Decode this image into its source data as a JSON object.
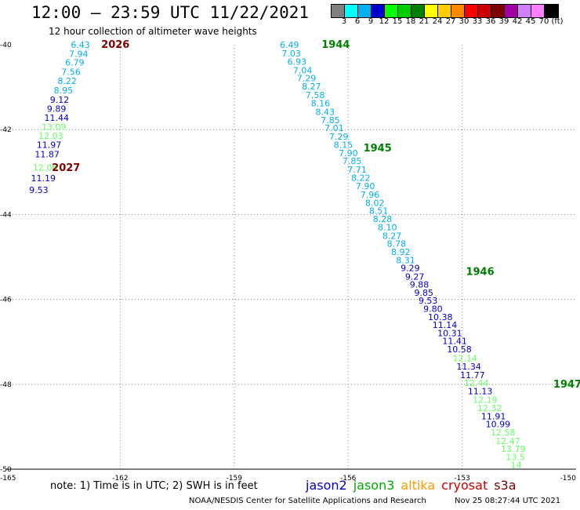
{
  "header": {
    "title": "12:00 – 23:59 UTC 11/22/2021",
    "subtitle": "12 hour collection of altimeter wave heights"
  },
  "color_legend": {
    "colors": [
      "#808080",
      "#00ffff",
      "#00b0f0",
      "#0000cc",
      "#00ff00",
      "#00cc00",
      "#008000",
      "#ffff00",
      "#ffcc00",
      "#ff8800",
      "#ff0000",
      "#cc0000",
      "#800000",
      "#a000a0",
      "#d080ff",
      "#ff80ff",
      "#000000"
    ],
    "labels": [
      "3",
      "6",
      "9",
      "12",
      "15",
      "18",
      "21",
      "24",
      "27",
      "30",
      "33",
      "36",
      "39",
      "42",
      "45",
      "70",
      "(ft)"
    ]
  },
  "chart_data": {
    "type": "scatter",
    "xlim": [
      -165,
      -150
    ],
    "ylim": [
      -50,
      -40
    ],
    "x_ticks": [
      "-165",
      "-162",
      "-159",
      "-156",
      "-153",
      "-150"
    ],
    "y_ticks": [
      "-40",
      "-42",
      "-44",
      "-46",
      "-48",
      "-50"
    ],
    "grid": true,
    "track_a": {
      "time_labels": [
        {
          "text": "2026",
          "x": -162.5,
          "y": -40.0,
          "color": "#800000"
        },
        {
          "text": "2027",
          "x": -163.8,
          "y": -42.9,
          "color": "#800000"
        }
      ],
      "points": [
        {
          "x": -163.3,
          "y": -40.0,
          "v": "6.43",
          "c": "#00b0f0"
        },
        {
          "x": -163.35,
          "y": -40.21,
          "v": "7.94",
          "c": "#00b0f0"
        },
        {
          "x": -163.45,
          "y": -40.42,
          "v": "6.79",
          "c": "#00b0f0"
        },
        {
          "x": -163.55,
          "y": -40.64,
          "v": "7.56",
          "c": "#00b0f0"
        },
        {
          "x": -163.65,
          "y": -40.85,
          "v": "8.22",
          "c": "#00b0f0"
        },
        {
          "x": -163.75,
          "y": -41.07,
          "v": "8.95",
          "c": "#00b0f0"
        },
        {
          "x": -163.85,
          "y": -41.29,
          "v": "9.12",
          "c": "#0000cc"
        },
        {
          "x": -163.93,
          "y": -41.51,
          "v": "9.89",
          "c": "#0000cc"
        },
        {
          "x": -164.0,
          "y": -41.72,
          "v": "11.44",
          "c": "#0000cc"
        },
        {
          "x": -164.07,
          "y": -41.93,
          "v": "13.09",
          "c": "#66ff66"
        },
        {
          "x": -164.15,
          "y": -42.14,
          "v": "12.03",
          "c": "#66ff66"
        },
        {
          "x": -164.2,
          "y": -42.36,
          "v": "11.97",
          "c": "#0000cc"
        },
        {
          "x": -164.25,
          "y": -42.58,
          "v": "11.87",
          "c": "#0000cc"
        },
        {
          "x": -164.3,
          "y": -42.89,
          "v": "12.06",
          "c": "#66ff66"
        },
        {
          "x": -164.35,
          "y": -43.14,
          "v": "11.19",
          "c": "#0000cc"
        },
        {
          "x": -164.4,
          "y": -43.42,
          "v": "9.53",
          "c": "#0000cc"
        }
      ]
    },
    "track_b": {
      "time_labels": [
        {
          "text": "1944",
          "x": -156.7,
          "y": -40.0,
          "color": "#008000"
        },
        {
          "text": "1945",
          "x": -155.6,
          "y": -42.44,
          "color": "#008000"
        },
        {
          "text": "1946",
          "x": -152.9,
          "y": -45.35,
          "color": "#008000"
        },
        {
          "text": "1947",
          "x": -150.6,
          "y": -48.0,
          "color": "#008000"
        }
      ],
      "points": [
        {
          "x": -157.8,
          "y": -40.0,
          "v": "6.49",
          "c": "#00b0f0"
        },
        {
          "x": -157.75,
          "y": -40.2,
          "v": "7.03",
          "c": "#00b0f0"
        },
        {
          "x": -157.6,
          "y": -40.4,
          "v": "6.93",
          "c": "#00b0f0"
        },
        {
          "x": -157.45,
          "y": -40.6,
          "v": "7.04",
          "c": "#00b0f0"
        },
        {
          "x": -157.35,
          "y": -40.79,
          "v": "7.29",
          "c": "#00b0f0"
        },
        {
          "x": -157.22,
          "y": -40.98,
          "v": "8.27",
          "c": "#00b0f0"
        },
        {
          "x": -157.12,
          "y": -41.18,
          "v": "7.58",
          "c": "#00b0f0"
        },
        {
          "x": -156.98,
          "y": -41.38,
          "v": "8.16",
          "c": "#00b0f0"
        },
        {
          "x": -156.86,
          "y": -41.58,
          "v": "8.43",
          "c": "#00b0f0"
        },
        {
          "x": -156.72,
          "y": -41.77,
          "v": "7.85",
          "c": "#00b0f0"
        },
        {
          "x": -156.62,
          "y": -41.96,
          "v": "7.01",
          "c": "#00b0f0"
        },
        {
          "x": -156.5,
          "y": -42.16,
          "v": "7.29",
          "c": "#00b0f0"
        },
        {
          "x": -156.38,
          "y": -42.36,
          "v": "8.15",
          "c": "#00b0f0"
        },
        {
          "x": -156.25,
          "y": -42.55,
          "v": "7.90",
          "c": "#00b0f0"
        },
        {
          "x": -156.15,
          "y": -42.74,
          "v": "7.85",
          "c": "#00b0f0"
        },
        {
          "x": -156.02,
          "y": -42.94,
          "v": "7.71",
          "c": "#00b0f0"
        },
        {
          "x": -155.92,
          "y": -43.13,
          "v": "8.22",
          "c": "#00b0f0"
        },
        {
          "x": -155.8,
          "y": -43.33,
          "v": "7.90",
          "c": "#00b0f0"
        },
        {
          "x": -155.68,
          "y": -43.53,
          "v": "7.96",
          "c": "#00b0f0"
        },
        {
          "x": -155.55,
          "y": -43.72,
          "v": "8.02",
          "c": "#00b0f0"
        },
        {
          "x": -155.45,
          "y": -43.91,
          "v": "8.51",
          "c": "#00b0f0"
        },
        {
          "x": -155.35,
          "y": -44.1,
          "v": "8.28",
          "c": "#00b0f0"
        },
        {
          "x": -155.22,
          "y": -44.3,
          "v": "8.10",
          "c": "#00b0f0"
        },
        {
          "x": -155.1,
          "y": -44.5,
          "v": "8.27",
          "c": "#00b0f0"
        },
        {
          "x": -154.98,
          "y": -44.69,
          "v": "8.78",
          "c": "#00b0f0"
        },
        {
          "x": -154.87,
          "y": -44.88,
          "v": "8.92",
          "c": "#00b0f0"
        },
        {
          "x": -154.74,
          "y": -45.07,
          "v": "8.31",
          "c": "#00b0f0"
        },
        {
          "x": -154.62,
          "y": -45.26,
          "v": "9.29",
          "c": "#0000cc"
        },
        {
          "x": -154.5,
          "y": -45.46,
          "v": "9.27",
          "c": "#0000cc"
        },
        {
          "x": -154.38,
          "y": -45.65,
          "v": "9.88",
          "c": "#0000cc"
        },
        {
          "x": -154.26,
          "y": -45.84,
          "v": "9.85",
          "c": "#0000cc"
        },
        {
          "x": -154.15,
          "y": -46.03,
          "v": "9.53",
          "c": "#0000cc"
        },
        {
          "x": -154.02,
          "y": -46.22,
          "v": "9.80",
          "c": "#0000cc"
        },
        {
          "x": -153.9,
          "y": -46.41,
          "v": "10.38",
          "c": "#0000cc"
        },
        {
          "x": -153.78,
          "y": -46.6,
          "v": "11.14",
          "c": "#0000cc"
        },
        {
          "x": -153.65,
          "y": -46.79,
          "v": "10.31",
          "c": "#0000cc"
        },
        {
          "x": -153.52,
          "y": -46.98,
          "v": "11.41",
          "c": "#0000cc"
        },
        {
          "x": -153.4,
          "y": -47.17,
          "v": "10.58",
          "c": "#0000cc"
        },
        {
          "x": -153.25,
          "y": -47.38,
          "v": "12.14",
          "c": "#66ff66"
        },
        {
          "x": -153.15,
          "y": -47.58,
          "v": "11.34",
          "c": "#0000cc"
        },
        {
          "x": -153.05,
          "y": -47.78,
          "v": "11.77",
          "c": "#0000cc"
        },
        {
          "x": -152.95,
          "y": -47.97,
          "v": "12.44",
          "c": "#66ff66"
        },
        {
          "x": -152.85,
          "y": -48.16,
          "v": "11.13",
          "c": "#0000cc"
        },
        {
          "x": -152.72,
          "y": -48.36,
          "v": "12.19",
          "c": "#66ff66"
        },
        {
          "x": -152.6,
          "y": -48.56,
          "v": "12.32",
          "c": "#66ff66"
        },
        {
          "x": -152.5,
          "y": -48.75,
          "v": "11.91",
          "c": "#0000cc"
        },
        {
          "x": -152.38,
          "y": -48.94,
          "v": "10.99",
          "c": "#0000cc"
        },
        {
          "x": -152.25,
          "y": -49.13,
          "v": "12.58",
          "c": "#66ff66"
        },
        {
          "x": -152.12,
          "y": -49.33,
          "v": "12.47",
          "c": "#66ff66"
        },
        {
          "x": -151.98,
          "y": -49.52,
          "v": "13.79",
          "c": "#66ff66"
        },
        {
          "x": -151.85,
          "y": -49.71,
          "v": "13.5",
          "c": "#66ff66"
        },
        {
          "x": -151.72,
          "y": -49.9,
          "v": "14",
          "c": "#66ff66"
        }
      ]
    }
  },
  "satellites": [
    {
      "name": "jason2",
      "color": "#0000cc"
    },
    {
      "name": "jason3",
      "color": "#00aa00"
    },
    {
      "name": "altika",
      "color": "#ff9900"
    },
    {
      "name": "cryosat",
      "color": "#cc0000"
    },
    {
      "name": "s3a",
      "color": "#800000"
    }
  ],
  "note": "note: 1) Time is in UTC; 2) SWH is in feet",
  "footer": {
    "credit": "NOAA/NESDIS Center for Satellite Applications and Research",
    "timestamp": "Nov 25 08:27:44 UTC 2021"
  }
}
